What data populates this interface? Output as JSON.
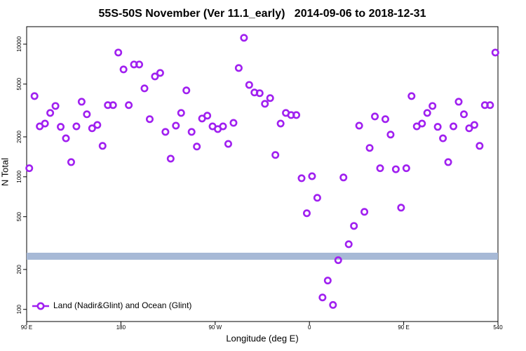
{
  "chart_data": {
    "type": "scatter",
    "title": "55S-50S November (Ver 11.1_early)   2014-09-06 to 2018-12-31",
    "x_label": "Longitude (deg E)",
    "y_label": "N Total",
    "xlim": [
      90,
      540
    ],
    "ylim": [
      81,
      13550
    ],
    "ylog": true,
    "grid": false,
    "legend": "bottom-left",
    "xticks": [
      {
        "value": 90,
        "label": "90 E"
      },
      180,
      {
        "value": 270,
        "label": "90 W"
      },
      {
        "value": 360,
        "label": "0"
      },
      {
        "value": 450,
        "label": "90 E"
      },
      540
    ],
    "yticks": [
      100,
      200,
      500,
      1000,
      2000,
      5000,
      10000
    ],
    "series": [
      {
        "name": "Land (Nadir&Glint) and Ocean (Glint)",
        "color": "#a020f0",
        "x": [
          92.5,
          97.5,
          102.5,
          107.5,
          112.5,
          117.5,
          122.5,
          127.5,
          132.5,
          137.5,
          142.5,
          147.5,
          152.5,
          157.5,
          162.5,
          167.5,
          172.5,
          177.5,
          182.5,
          187.5,
          192.5,
          197.5,
          202.5,
          207.5,
          212.5,
          217.5,
          222.5,
          227.5,
          232.5,
          237.5,
          242.5,
          247.5,
          252.5,
          257.5,
          262.5,
          267.5,
          272.5,
          277.5,
          282.5,
          287.5,
          292.5,
          297.5,
          302.5,
          307.5,
          312.5,
          317.5,
          322.5,
          327.5,
          332.5,
          337.5,
          342.5,
          347.5,
          352.5,
          357.5,
          362.5,
          367.5,
          372.5,
          377.5,
          382.5,
          387.5,
          392.5,
          397.5,
          402.5,
          407.5,
          412.5,
          417.5,
          422.5,
          427.5,
          432.5,
          437.5,
          442.5,
          447.5,
          452.5,
          457.5,
          462.5,
          467.5,
          472.5,
          477.5,
          482.5,
          487.5,
          492.5,
          497.5,
          502.5,
          507.5,
          512.5,
          517.5,
          522.5,
          527.5,
          532.5,
          537.5
        ],
        "values": [
          1160,
          4060,
          2400,
          2520,
          3030,
          3420,
          2380,
          1950,
          1290,
          2400,
          3680,
          2960,
          2320,
          2460,
          1710,
          3470,
          3470,
          8650,
          6450,
          3470,
          7030,
          7030,
          4640,
          2720,
          5710,
          6070,
          2180,
          1370,
          2430,
          3030,
          4480,
          2180,
          1690,
          2750,
          2890,
          2400,
          2290,
          2400,
          1770,
          2550,
          6610,
          11170,
          4930,
          4320,
          4270,
          3550,
          3920,
          1460,
          2520,
          3030,
          2920,
          2920,
          975,
          531,
          1010,
          694,
          123,
          165,
          108,
          235,
          988,
          310,
          426,
          2430,
          544,
          1650,
          2850,
          1160,
          2720,
          2080,
          1140,
          585,
          1160,
          4060,
          2400,
          2520,
          3030,
          3420,
          2380,
          1950,
          1290,
          2400,
          3680,
          2960,
          2320,
          2460,
          1710,
          3470,
          3470,
          8650
        ]
      }
    ]
  }
}
